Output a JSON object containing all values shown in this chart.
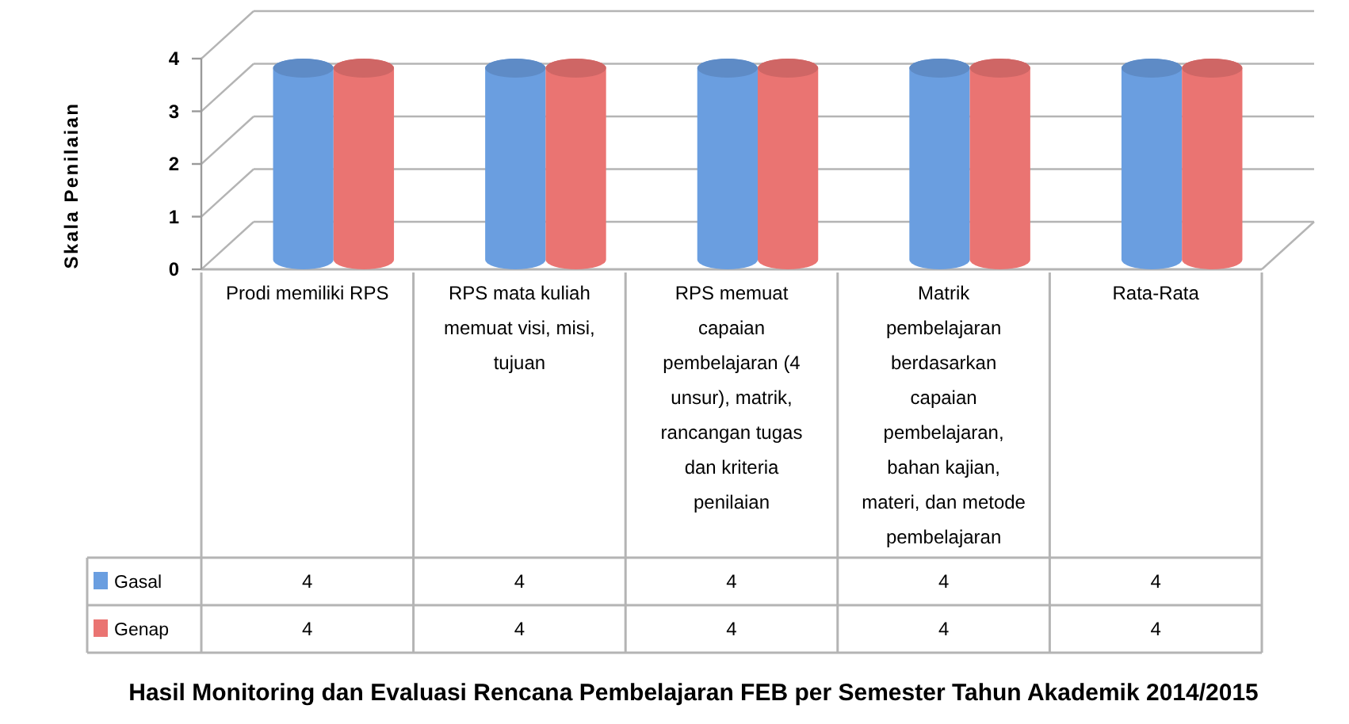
{
  "chart_data": {
    "type": "bar",
    "title": "Hasil Monitoring dan Evaluasi Rencana Pembelajaran FEB per Semester Tahun Akademik 2014/2015",
    "ylabel": "Skala Penilaian",
    "categories": [
      "Prodi memiliki RPS",
      "RPS mata kuliah memuat visi, misi, tujuan",
      "RPS memuat capaian pembelajaran (4 unsur), matrik, rancangan tugas dan kriteria penilaian",
      "Matrik pembelajaran berdasarkan capaian pembelajaran, bahan kajian, materi, dan metode pembelajaran",
      "Rata-Rata"
    ],
    "series": [
      {
        "name": "Gasal",
        "color": "#6a9ee0",
        "values": [
          4,
          4,
          4,
          4,
          4
        ]
      },
      {
        "name": "Genap",
        "color": "#ea7472",
        "values": [
          4,
          4,
          4,
          4,
          4
        ]
      }
    ],
    "ylim": [
      0,
      4
    ],
    "yticks": [
      0,
      1,
      2,
      3,
      4
    ],
    "grid": "y",
    "legend": "bottom",
    "data_labels": true
  }
}
